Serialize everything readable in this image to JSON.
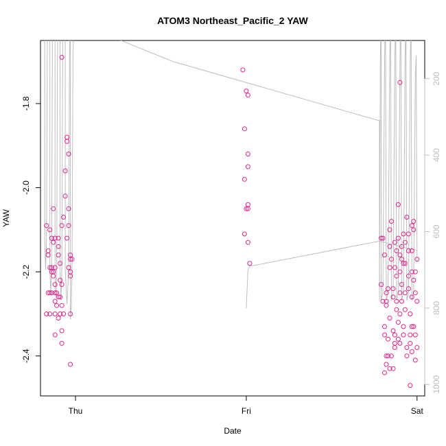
{
  "chart_data": {
    "type": "scatter",
    "title": "ATOM3 Northeast_Pacific_2 YAW",
    "xlabel": "Date",
    "ylabel": "YAW",
    "x_ticks": [
      {
        "label": "Thu",
        "value": 0
      },
      {
        "label": "Fri",
        "value": 1
      },
      {
        "label": "Sat",
        "value": 2
      }
    ],
    "y_ticks": [
      -2.4,
      -2.2,
      -2.0,
      -1.8
    ],
    "y_tick_labels": [
      "-2.4",
      "-2.2",
      "-2.0",
      "-1.8"
    ],
    "y2_ticks": [
      200,
      400,
      600,
      800,
      1000
    ],
    "y2_tick_labels": [
      "200",
      "400",
      "600",
      "800",
      "1000"
    ],
    "xlim": [
      -0.205,
      2.045
    ],
    "ylim": [
      -2.495,
      -1.65
    ],
    "y2lim": [
      100,
      1030
    ],
    "grid": false,
    "colors": {
      "points": "#e0218a",
      "depth_line": "#bdbdbd"
    },
    "series": [
      {
        "type": "scatter",
        "points": [
          [
            -0.17,
            -2.09
          ],
          [
            -0.16,
            -2.15
          ],
          [
            -0.16,
            -2.16
          ],
          [
            -0.15,
            -2.1
          ],
          [
            -0.15,
            -2.19
          ],
          [
            -0.16,
            -2.25
          ],
          [
            -0.15,
            -2.25
          ],
          [
            -0.17,
            -2.3
          ],
          [
            -0.15,
            -2.3
          ],
          [
            -0.14,
            -2.19
          ],
          [
            -0.14,
            -2.2
          ],
          [
            -0.14,
            -2.12
          ],
          [
            -0.13,
            -2.05
          ],
          [
            -0.13,
            -2.13
          ],
          [
            -0.13,
            -2.2
          ],
          [
            -0.12,
            -2.19
          ],
          [
            -0.13,
            -2.21
          ],
          [
            -0.12,
            -2.12
          ],
          [
            -0.12,
            -2.23
          ],
          [
            -0.12,
            -2.27
          ],
          [
            -0.14,
            -2.25
          ],
          [
            -0.12,
            -2.25
          ],
          [
            -0.11,
            -2.28
          ],
          [
            -0.12,
            -2.3
          ],
          [
            -0.11,
            -2.25
          ],
          [
            -0.1,
            -2.12
          ],
          [
            -0.1,
            -2.14
          ],
          [
            -0.1,
            -2.16
          ],
          [
            -0.1,
            -2.26
          ],
          [
            -0.1,
            -2.31
          ],
          [
            -0.12,
            -2.35
          ],
          [
            -0.09,
            -2.22
          ],
          [
            -0.09,
            -2.18
          ],
          [
            -0.09,
            -2.26
          ],
          [
            -0.09,
            -2.3
          ],
          [
            -0.08,
            -2.09
          ],
          [
            -0.08,
            -2.23
          ],
          [
            -0.08,
            -2.34
          ],
          [
            -0.08,
            -2.28
          ],
          [
            -0.08,
            -2.37
          ],
          [
            -0.08,
            -1.69
          ],
          [
            -0.07,
            -2.07
          ],
          [
            -0.07,
            -2.3
          ],
          [
            -0.06,
            -2.02
          ],
          [
            -0.06,
            -1.96
          ],
          [
            -0.05,
            -1.89
          ],
          [
            -0.05,
            -1.88
          ],
          [
            -0.05,
            -2.12
          ],
          [
            -0.04,
            -1.92
          ],
          [
            -0.04,
            -2.05
          ],
          [
            -0.04,
            -2.09
          ],
          [
            -0.04,
            -2.19
          ],
          [
            -0.03,
            -2.16
          ],
          [
            -0.03,
            -2.17
          ],
          [
            -0.03,
            -2.2
          ],
          [
            -0.03,
            -2.21
          ],
          [
            -0.03,
            -2.3
          ],
          [
            -0.02,
            -2.17
          ],
          [
            -0.03,
            -2.42
          ],
          [
            0.98,
            -1.72
          ],
          [
            1.0,
            -1.77
          ],
          [
            1.01,
            -1.78
          ],
          [
            0.99,
            -1.86
          ],
          [
            1.01,
            -1.92
          ],
          [
            1.01,
            -1.95
          ],
          [
            0.99,
            -1.98
          ],
          [
            1.01,
            -2.04
          ],
          [
            1.01,
            -2.05
          ],
          [
            1.0,
            -2.05
          ],
          [
            0.99,
            -2.11
          ],
          [
            1.01,
            -2.13
          ],
          [
            1.02,
            -2.18
          ],
          [
            1.79,
            -2.23
          ],
          [
            1.8,
            -2.27
          ],
          [
            1.79,
            -2.12
          ],
          [
            1.8,
            -2.12
          ],
          [
            1.81,
            -2.16
          ],
          [
            1.82,
            -2.25
          ],
          [
            1.81,
            -2.33
          ],
          [
            1.81,
            -2.35
          ],
          [
            1.82,
            -2.4
          ],
          [
            1.83,
            -2.4
          ],
          [
            1.82,
            -2.42
          ],
          [
            1.81,
            -2.44
          ],
          [
            1.82,
            -2.27
          ],
          [
            1.83,
            -2.24
          ],
          [
            1.82,
            -2.28
          ],
          [
            1.83,
            -2.36
          ],
          [
            1.84,
            -2.31
          ],
          [
            1.84,
            -2.19
          ],
          [
            1.84,
            -2.14
          ],
          [
            1.84,
            -2.1
          ],
          [
            1.85,
            -2.08
          ],
          [
            1.85,
            -2.17
          ],
          [
            1.86,
            -2.24
          ],
          [
            1.86,
            -2.26
          ],
          [
            1.86,
            -2.34
          ],
          [
            1.87,
            -2.35
          ],
          [
            1.87,
            -2.37
          ],
          [
            1.87,
            -2.38
          ],
          [
            1.86,
            -2.43
          ],
          [
            1.87,
            -2.13
          ],
          [
            1.87,
            -2.19
          ],
          [
            1.88,
            -2.15
          ],
          [
            1.88,
            -2.21
          ],
          [
            1.88,
            -2.27
          ],
          [
            1.88,
            -2.29
          ],
          [
            1.89,
            -2.32
          ],
          [
            1.89,
            -2.36
          ],
          [
            1.89,
            -2.04
          ],
          [
            1.89,
            -2.12
          ],
          [
            1.9,
            -2.16
          ],
          [
            1.9,
            -2.2
          ],
          [
            1.9,
            -2.25
          ],
          [
            1.9,
            -2.3
          ],
          [
            1.9,
            -2.37
          ],
          [
            1.9,
            -1.75
          ],
          [
            1.91,
            -2.14
          ],
          [
            1.91,
            -2.17
          ],
          [
            1.91,
            -2.23
          ],
          [
            1.91,
            -2.27
          ],
          [
            1.92,
            -2.33
          ],
          [
            1.92,
            -2.35
          ],
          [
            1.92,
            -2.18
          ],
          [
            1.92,
            -2.11
          ],
          [
            1.93,
            -2.13
          ],
          [
            1.93,
            -2.18
          ],
          [
            1.93,
            -2.25
          ],
          [
            1.93,
            -2.29
          ],
          [
            1.94,
            -2.38
          ],
          [
            1.94,
            -2.4
          ],
          [
            1.94,
            -2.07
          ],
          [
            1.95,
            -2.11
          ],
          [
            1.95,
            -2.15
          ],
          [
            1.95,
            -2.21
          ],
          [
            1.95,
            -2.24
          ],
          [
            1.96,
            -2.3
          ],
          [
            1.96,
            -2.35
          ],
          [
            1.96,
            -2.37
          ],
          [
            1.96,
            -2.47
          ],
          [
            1.97,
            -2.09
          ],
          [
            1.97,
            -2.15
          ],
          [
            1.97,
            -2.2
          ],
          [
            1.97,
            -2.26
          ],
          [
            1.97,
            -2.33
          ],
          [
            1.98,
            -2.22
          ],
          [
            1.98,
            -2.08
          ],
          [
            1.98,
            -2.1
          ],
          [
            1.99,
            -2.2
          ],
          [
            1.99,
            -2.25
          ],
          [
            1.99,
            -2.35
          ],
          [
            1.99,
            -2.41
          ],
          [
            2.0,
            -2.17
          ],
          [
            2.0,
            -2.27
          ],
          [
            2.0,
            -2.38
          ],
          [
            1.98,
            -2.33
          ],
          [
            1.97,
            -2.39
          ],
          [
            1.85,
            -2.4
          ],
          [
            1.84,
            -2.43
          ]
        ]
      },
      {
        "type": "line",
        "axis": "right",
        "points": [
          [
            -0.19,
            50
          ],
          [
            -0.18,
            50
          ],
          [
            -0.18,
            620
          ],
          [
            -0.175,
            700
          ],
          [
            -0.17,
            620
          ],
          [
            -0.165,
            100
          ],
          [
            -0.16,
            50
          ],
          [
            -0.15,
            50
          ],
          [
            -0.15,
            700
          ],
          [
            -0.145,
            760
          ],
          [
            -0.14,
            700
          ],
          [
            -0.135,
            100
          ],
          [
            -0.13,
            50
          ],
          [
            -0.12,
            50
          ],
          [
            -0.12,
            700
          ],
          [
            -0.115,
            770
          ],
          [
            -0.11,
            700
          ],
          [
            -0.105,
            100
          ],
          [
            -0.1,
            50
          ],
          [
            -0.09,
            50
          ],
          [
            -0.09,
            700
          ],
          [
            -0.085,
            780
          ],
          [
            -0.08,
            700
          ],
          [
            -0.075,
            120
          ],
          [
            -0.07,
            50
          ],
          [
            -0.06,
            50
          ],
          [
            -0.06,
            700
          ],
          [
            -0.05,
            790
          ],
          [
            -0.04,
            700
          ],
          [
            -0.035,
            130
          ],
          [
            -0.03,
            50
          ],
          [
            -0.03,
            830
          ],
          [
            -0.025,
            800
          ],
          [
            -0.02,
            700
          ],
          [
            -0.015,
            150
          ],
          [
            -0.01,
            50
          ],
          [
            0.57,
            155
          ],
          [
            1.78,
            310
          ],
          [
            1.78,
            780
          ],
          [
            1.785,
            150
          ],
          [
            1.79,
            30
          ],
          [
            1.79,
            780
          ],
          [
            1.8,
            760
          ],
          [
            1.81,
            150
          ],
          [
            1.815,
            30
          ],
          [
            1.82,
            780
          ],
          [
            1.83,
            760
          ],
          [
            1.84,
            150
          ],
          [
            1.845,
            30
          ],
          [
            1.85,
            780
          ],
          [
            1.86,
            760
          ],
          [
            1.87,
            150
          ],
          [
            1.875,
            30
          ],
          [
            1.88,
            780
          ],
          [
            1.89,
            760
          ],
          [
            1.9,
            150
          ],
          [
            1.905,
            30
          ],
          [
            1.91,
            780
          ],
          [
            1.92,
            760
          ],
          [
            1.93,
            150
          ],
          [
            1.935,
            30
          ],
          [
            1.94,
            780
          ],
          [
            1.95,
            760
          ],
          [
            1.96,
            170
          ],
          [
            1.965,
            30
          ],
          [
            1.97,
            780
          ],
          [
            1.98,
            760
          ],
          [
            1.99,
            190
          ],
          [
            1.995,
            140
          ],
          [
            2.0,
            680
          ]
        ]
      },
      {
        "type": "line",
        "axis": "right",
        "points": [
          [
            1.0,
            800
          ],
          [
            1.01,
            700
          ],
          [
            1.02,
            690
          ],
          [
            1.03,
            690
          ],
          [
            1.78,
            625
          ],
          [
            2.0,
            650
          ]
        ]
      }
    ]
  }
}
